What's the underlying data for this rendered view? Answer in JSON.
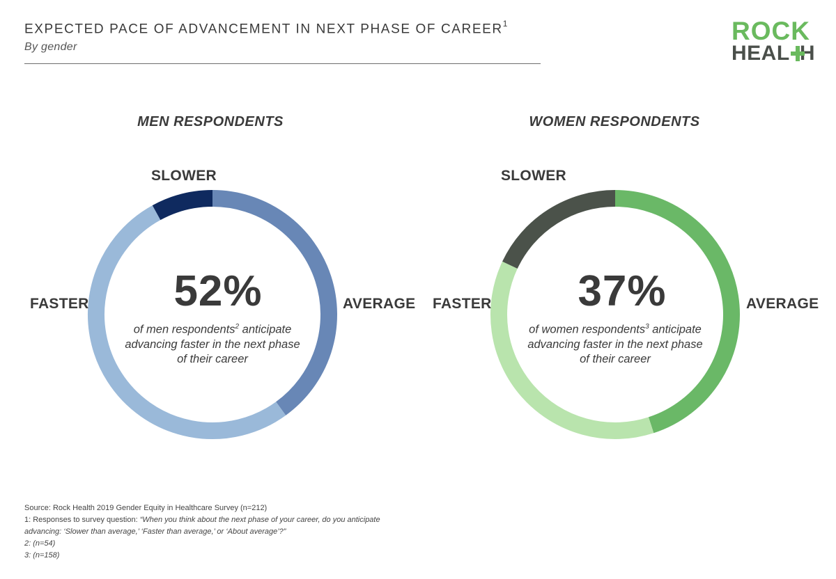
{
  "header": {
    "title": "EXPECTED PACE OF ADVANCEMENT IN NEXT PHASE OF CAREER",
    "title_sup": "1",
    "subtitle": "By gender"
  },
  "logo": {
    "line1": "ROCK",
    "line2_left": "HEAL",
    "line2_right": "H"
  },
  "colors": {
    "men_slower": "#0f2a5f",
    "men_average": "#6887b6",
    "men_faster": "#9ab9d9",
    "women_slower": "#4b524a",
    "women_average": "#6ab867",
    "women_faster": "#b9e4ad"
  },
  "chart_data": [
    {
      "type": "pie",
      "title": "MEN RESPONDENTS",
      "center_value": "52%",
      "center_text": "of men respondents",
      "center_sup": "2",
      "center_text2": " anticipate advancing faster in the next phase of their career",
      "slices": [
        {
          "label": "AVERAGE",
          "value": 40
        },
        {
          "label": "FASTER",
          "value": 52
        },
        {
          "label": "SLOWER",
          "value": 8
        }
      ]
    },
    {
      "type": "pie",
      "title": "WOMEN RESPONDENTS",
      "center_value": "37%",
      "center_text": "of women respondents",
      "center_sup": "3",
      "center_text2": " anticipate advancing faster in the next phase of their career",
      "slices": [
        {
          "label": "AVERAGE",
          "value": 45
        },
        {
          "label": "FASTER",
          "value": 37
        },
        {
          "label": "SLOWER",
          "value": 18
        }
      ]
    }
  ],
  "footnotes": {
    "source": "Source: Rock Health 2019 Gender Equity in Healthcare Survey (n=212)",
    "note1_prefix": "1: Responses to survey question: ",
    "note1_quote": "“When you think about the next phase of your career, do you anticipate advancing: ‘Slower than average,’ ‘Faster than average,’ or ‘About average’?”",
    "note2": "2: (n=54)",
    "note3": "3: (n=158)"
  }
}
